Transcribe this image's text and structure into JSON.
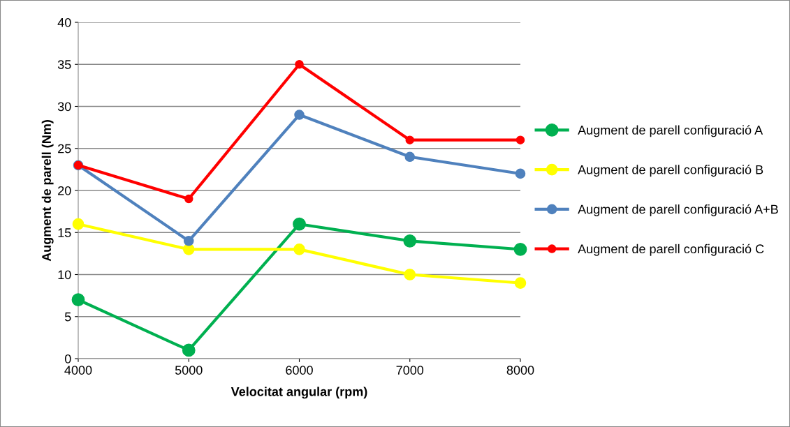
{
  "chart_data": {
    "type": "line",
    "xlabel": "Velocitat angular (rpm)",
    "ylabel": "Augment de parell (Nm)",
    "x": [
      4000,
      5000,
      6000,
      7000,
      8000
    ],
    "series": [
      {
        "name": "Augment de parell configuració A",
        "color": "#00b050",
        "values": [
          7,
          1,
          16,
          14,
          13
        ]
      },
      {
        "name": "Augment de parell configuració B",
        "color": "#ffff00",
        "values": [
          16,
          13,
          13,
          10,
          9
        ]
      },
      {
        "name": "Augment de parell configuració A+B",
        "color": "#4f81bd",
        "values": [
          23,
          14,
          29,
          24,
          22
        ]
      },
      {
        "name": "Augment de parell configuració C",
        "color": "#ff0000",
        "values": [
          23,
          19,
          35,
          26,
          26
        ]
      }
    ],
    "xlim": [
      4000,
      8000
    ],
    "xticks": [
      4000,
      5000,
      6000,
      7000,
      8000
    ],
    "ylim": [
      0,
      40
    ],
    "yticks": [
      0,
      5,
      10,
      15,
      20,
      25,
      30,
      35,
      40
    ],
    "grid": "y",
    "legend": "right",
    "marker": "circle",
    "line_style": "solid"
  }
}
